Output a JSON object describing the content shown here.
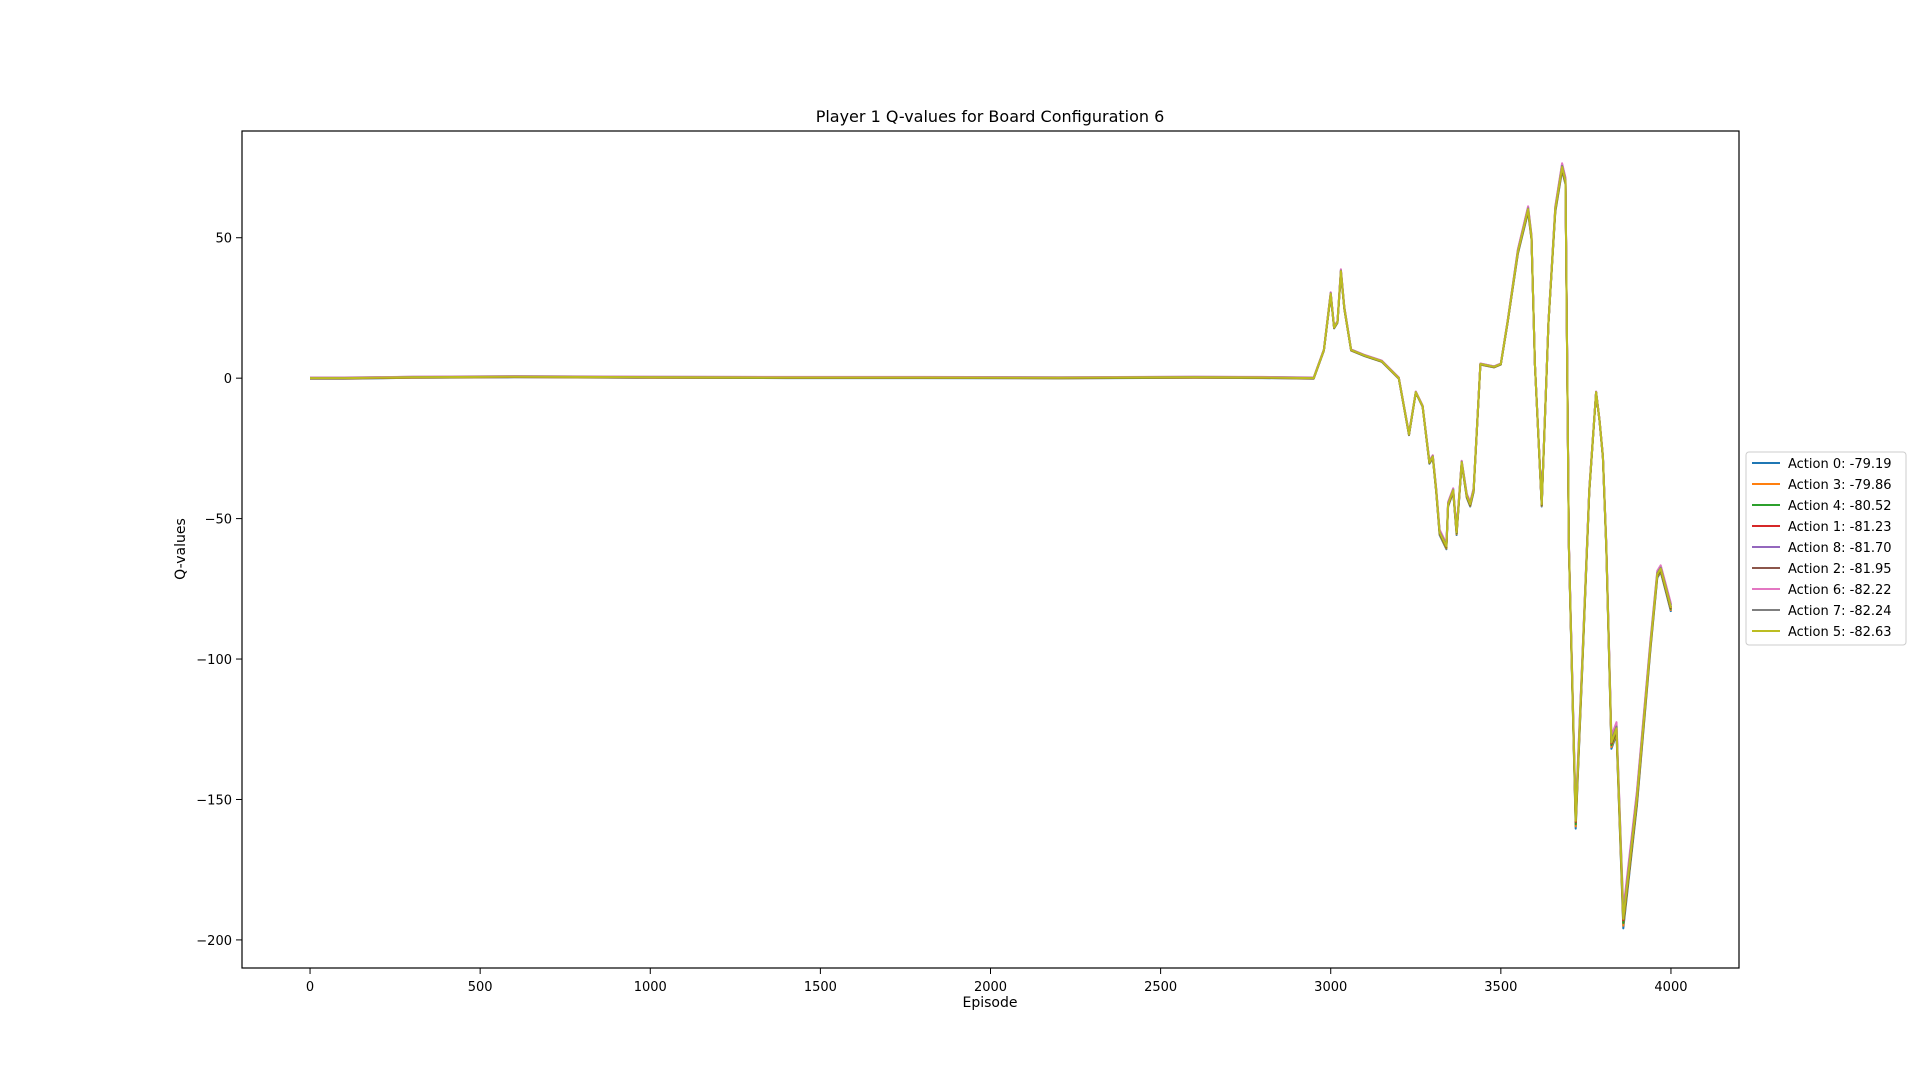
{
  "chart_data": {
    "type": "line",
    "title": "Player 1 Q-values for Board Configuration 6",
    "xlabel": "Episode",
    "ylabel": "Q-values",
    "xlim": [
      -200,
      4200
    ],
    "ylim": [
      -210,
      88
    ],
    "xticks": [
      0,
      500,
      1000,
      1500,
      2000,
      2500,
      3000,
      3500,
      4000
    ],
    "xtick_labels": [
      "0",
      "500",
      "1000",
      "1500",
      "2000",
      "2500",
      "3000",
      "3500",
      "4000"
    ],
    "yticks": [
      -200,
      -150,
      -100,
      -50,
      0,
      50
    ],
    "ytick_labels": [
      "−200",
      "−150",
      "−100",
      "−50",
      "0",
      "50"
    ],
    "grid": false,
    "legend_position": "center-right outside",
    "x": [
      0,
      100,
      300,
      600,
      1000,
      1400,
      1800,
      2200,
      2600,
      2800,
      2950,
      2980,
      3000,
      3010,
      3020,
      3030,
      3040,
      3060,
      3100,
      3150,
      3200,
      3230,
      3250,
      3270,
      3290,
      3300,
      3310,
      3320,
      3340,
      3345,
      3360,
      3370,
      3385,
      3400,
      3410,
      3420,
      3440,
      3480,
      3500,
      3520,
      3550,
      3580,
      3590,
      3600,
      3620,
      3640,
      3660,
      3680,
      3690,
      3700,
      3720,
      3740,
      3760,
      3780,
      3790,
      3800,
      3810,
      3825,
      3840,
      3860,
      3900,
      3940,
      3960,
      3970,
      3985,
      4000
    ],
    "series": [
      {
        "name": "Action 0: -79.19",
        "color": "#1f77b4",
        "offset": -0.6
      },
      {
        "name": "Action 3: -79.86",
        "color": "#ff7f0e",
        "offset": -0.4
      },
      {
        "name": "Action 4: -80.52",
        "color": "#2ca02c",
        "offset": -0.2
      },
      {
        "name": "Action 1: -81.23",
        "color": "#d62728",
        "offset": 0.0
      },
      {
        "name": "Action 8: -81.70",
        "color": "#9467bd",
        "offset": 0.6
      },
      {
        "name": "Action 2: -81.95",
        "color": "#8c564b",
        "offset": 0.2
      },
      {
        "name": "Action 6: -82.22",
        "color": "#e377c2",
        "offset": 0.8
      },
      {
        "name": "Action 7: -82.24",
        "color": "#7f7f7f",
        "offset": 0.3
      },
      {
        "name": "Action 5: -82.63",
        "color": "#bcbd22",
        "offset": 0.1
      }
    ],
    "base_values": [
      0,
      0,
      0.3,
      0.5,
      0.3,
      0.2,
      0.2,
      0.1,
      0.3,
      0.2,
      0,
      10,
      30,
      18,
      20,
      38,
      25,
      10,
      8,
      6,
      0,
      -20,
      -5,
      -10,
      -30,
      -28,
      -40,
      -55,
      -60,
      -45,
      -40,
      -55,
      -30,
      -42,
      -45,
      -40,
      5,
      4,
      5,
      20,
      45,
      60,
      50,
      5,
      -45,
      20,
      60,
      75,
      70,
      -60,
      -158,
      -100,
      -40,
      -5,
      -15,
      -28,
      -60,
      -130,
      -125,
      -193,
      -150,
      -95,
      -70,
      -68,
      -75,
      -82
    ]
  }
}
